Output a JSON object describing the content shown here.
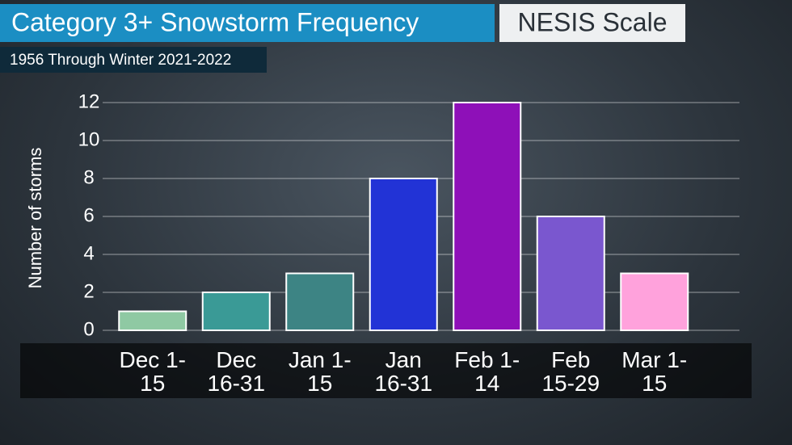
{
  "chart_data": {
    "type": "bar",
    "title": "Category 3+ Snowstorm Frequency",
    "badge": "NESIS Scale",
    "subtitle": "1956 Through Winter 2021-2022",
    "y_label": "Number of storms",
    "categories": [
      "Dec 1-15",
      "Dec 16-31",
      "Jan 1-15",
      "Jan 16-31",
      "Feb 1-14",
      "Feb 15-29",
      "Mar 1-15"
    ],
    "values": [
      1,
      2,
      3,
      8,
      12,
      6,
      3
    ],
    "colors": [
      "#8fc9a3",
      "#3a9a96",
      "#3d8484",
      "#2233d6",
      "#8e10b8",
      "#7a57cf",
      "#ffa2dc"
    ],
    "ylim": [
      0,
      12
    ],
    "yticks": [
      0,
      2,
      4,
      6,
      8,
      10,
      12
    ],
    "grid": true
  }
}
